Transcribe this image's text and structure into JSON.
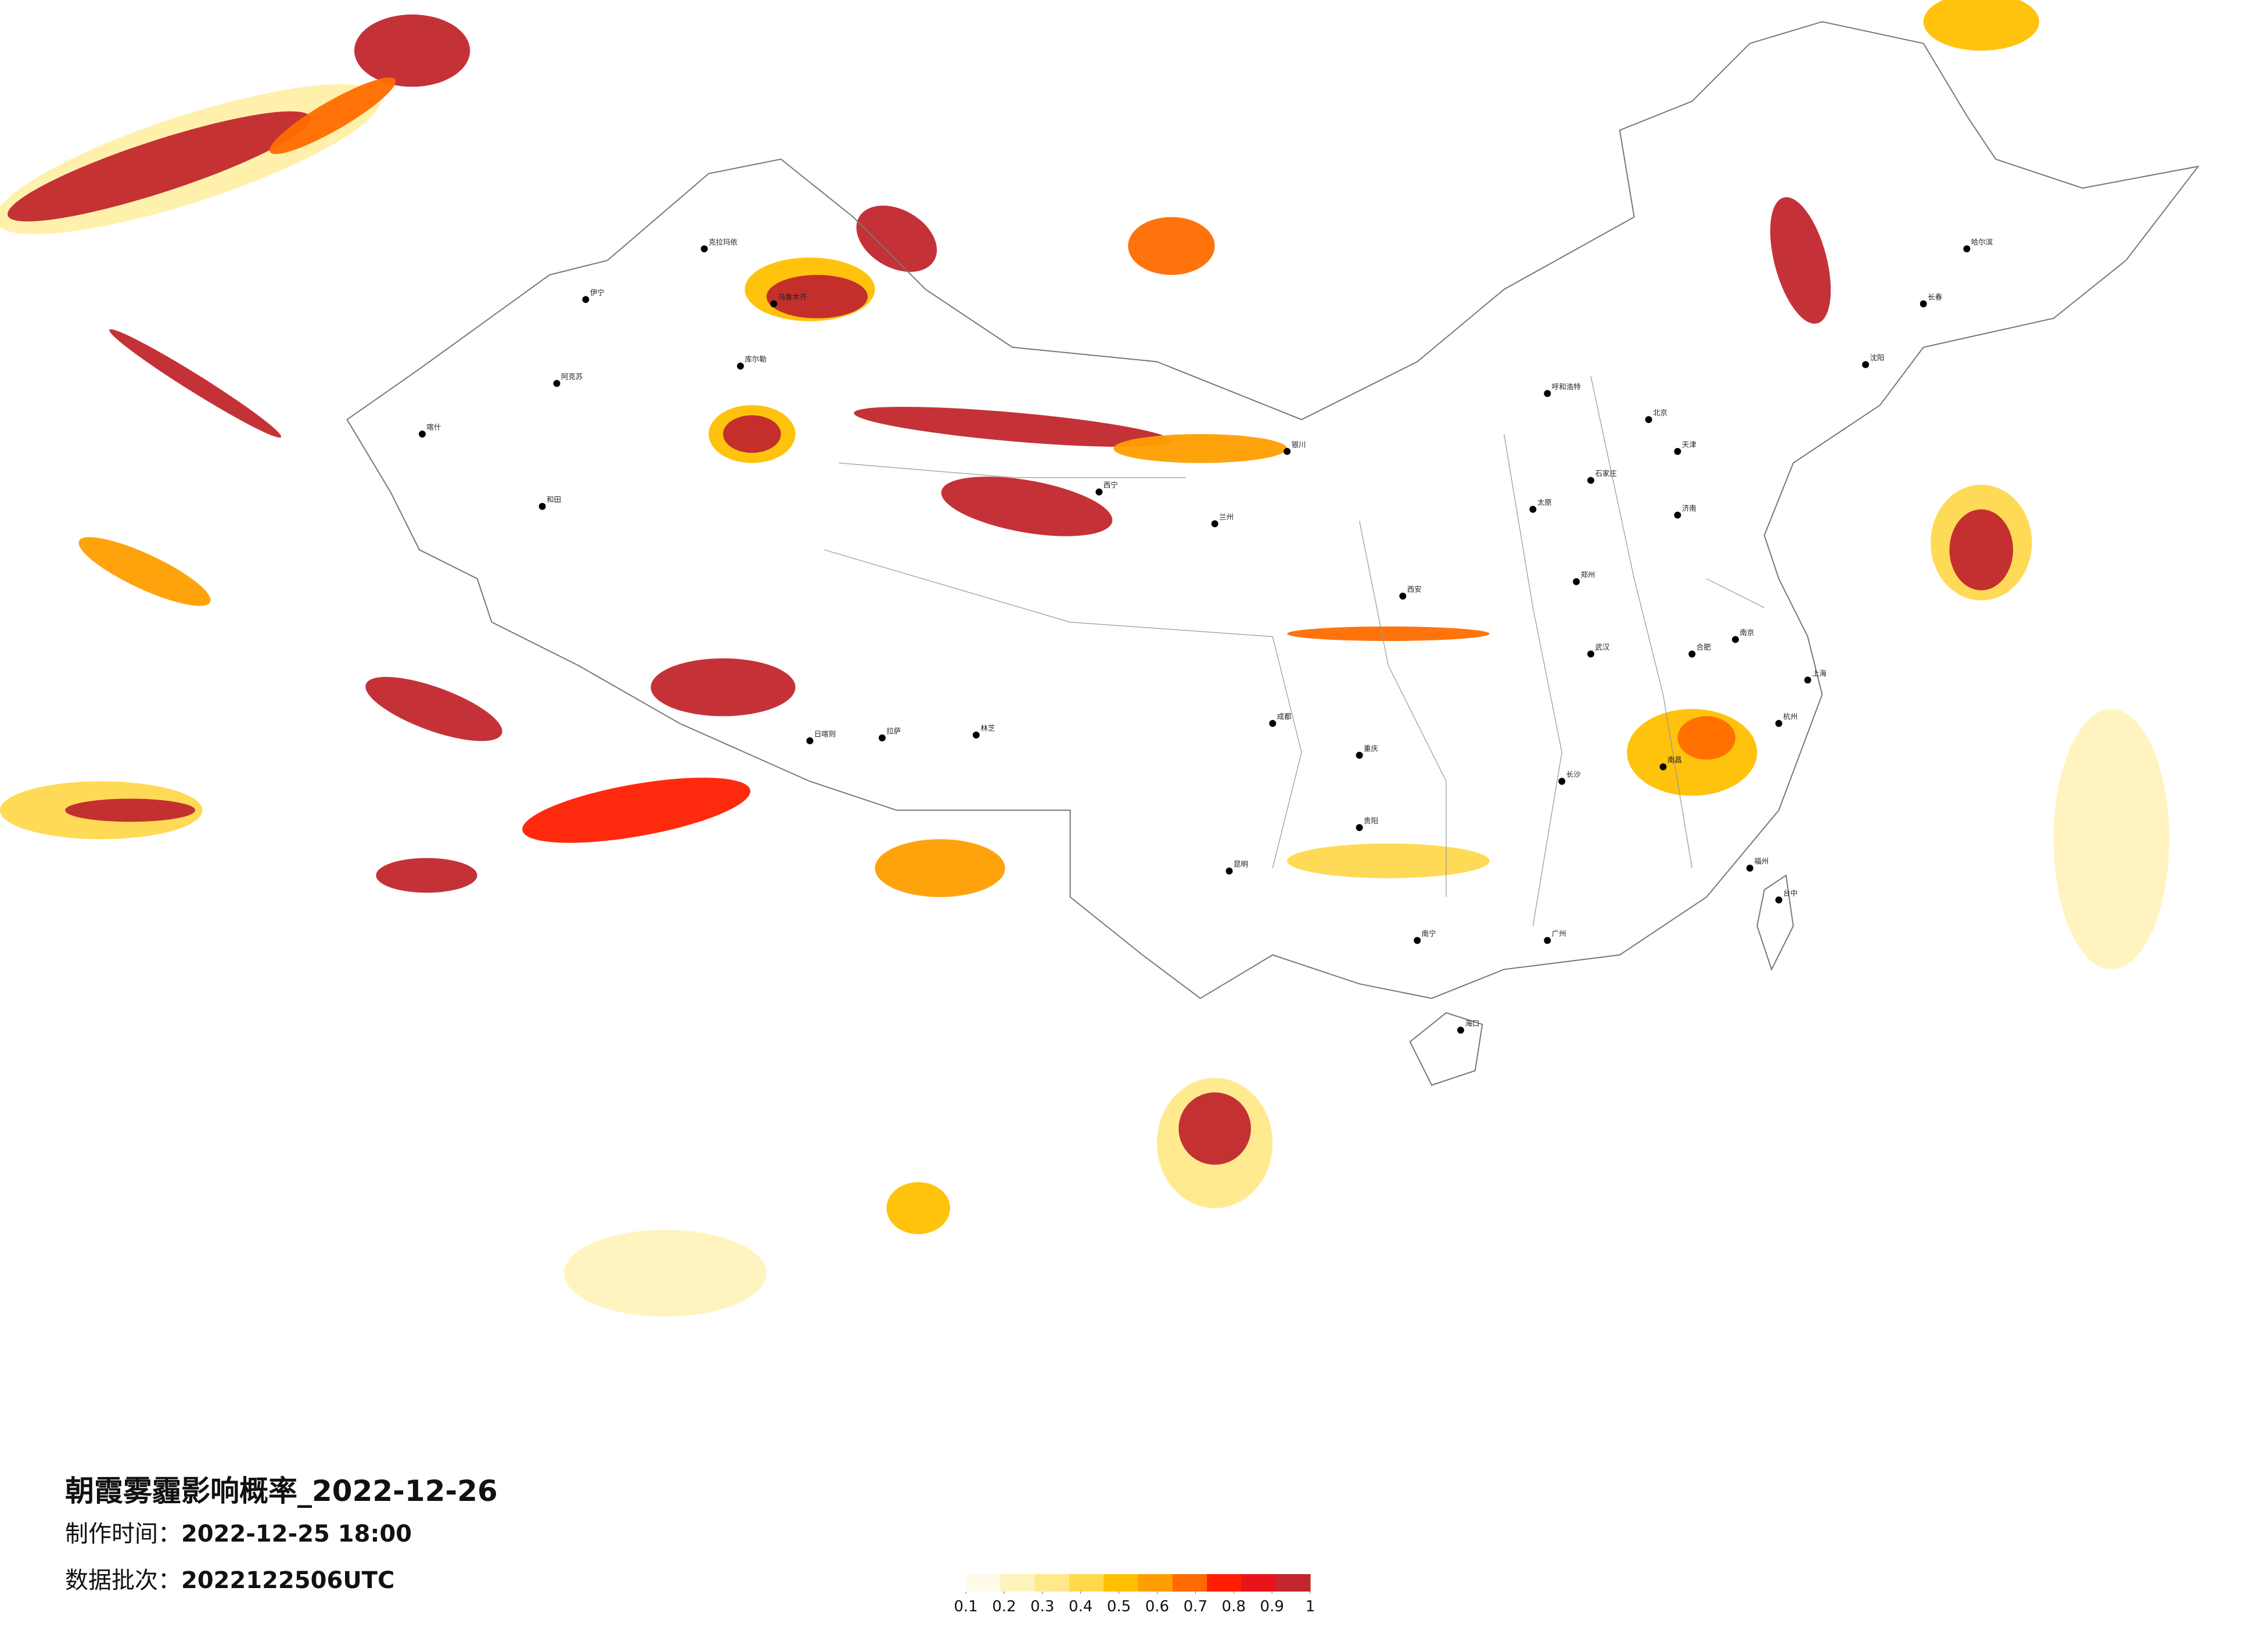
{
  "title": "朝霞雾霾影响概率_2022-12-26",
  "made_label": "制作时间：",
  "made_value": "2022-12-25 18:00",
  "batch_label": "数据批次：",
  "batch_value": "2022122506UTC",
  "legend": {
    "colors": [
      "#fffbea",
      "#fff3bd",
      "#ffe98a",
      "#ffd84d",
      "#ffc000",
      "#ff9e00",
      "#ff6b00",
      "#ff1f00",
      "#e8141a",
      "#c1272d"
    ],
    "ticks": [
      0.1,
      0.2,
      0.3,
      0.4,
      0.5,
      0.6,
      0.7,
      0.8,
      0.9,
      1
    ]
  },
  "cities": [
    "伊宁",
    "克拉玛依",
    "乌鲁木齐",
    "库尔勒",
    "阿克苏",
    "喀什",
    "和田",
    "日喀则",
    "拉萨",
    "林芝",
    "西宁",
    "兰州",
    "银川",
    "呼和浩特",
    "北京",
    "天津",
    "石家庄",
    "太原",
    "济南",
    "郑州",
    "西安",
    "成都",
    "重庆",
    "武汉",
    "长沙",
    "南昌",
    "合肥",
    "南京",
    "上海",
    "杭州",
    "福州",
    "广州",
    "南宁",
    "贵阳",
    "昆明",
    "海口",
    "哈尔滨",
    "长春",
    "沈阳",
    "台中"
  ]
}
